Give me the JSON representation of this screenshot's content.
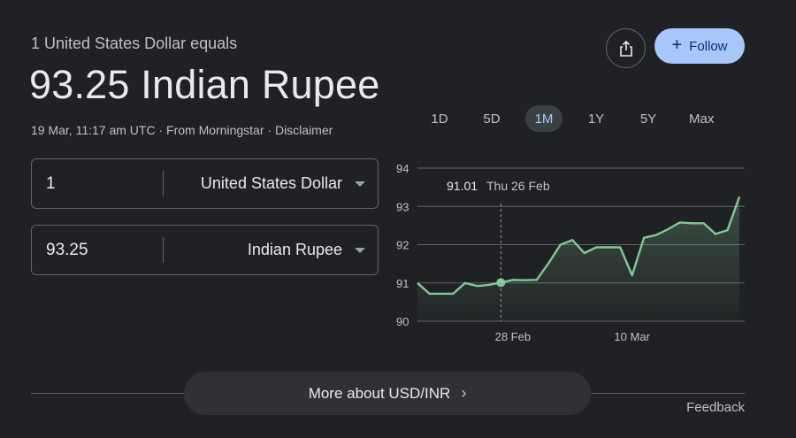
{
  "header": {
    "subtitle": "1 United States Dollar equals",
    "value": "93.25 Indian Rupee",
    "timestamp": "19 Mar, 11:17 am UTC",
    "source": "From Morningstar",
    "disclaimer": "Disclaimer",
    "separator": " · "
  },
  "actions": {
    "share_icon": "share-icon",
    "follow_label": "Follow",
    "follow_icon": "+"
  },
  "converter": {
    "from": {
      "amount": "1",
      "currency": "United States Dollar"
    },
    "to": {
      "amount": "93.25",
      "currency": "Indian Rupee"
    }
  },
  "ranges": {
    "items": [
      "1D",
      "5D",
      "1M",
      "1Y",
      "5Y",
      "Max"
    ],
    "active": "1M"
  },
  "tooltip": {
    "value": "91.01",
    "date": "Thu 26 Feb"
  },
  "colors": {
    "line": "#81c995",
    "accent": "#a8c7fa",
    "background": "#202124"
  },
  "chart_data": {
    "type": "line",
    "x_ticks": [
      "28 Feb",
      "10 Mar"
    ],
    "y_ticks": [
      90,
      91,
      92,
      93,
      94
    ],
    "ylim": [
      90,
      94
    ],
    "grid": true,
    "series": [
      {
        "values": [
          91.0,
          90.72,
          90.72,
          90.72,
          91.0,
          90.92,
          90.95,
          91.01,
          91.08,
          91.07,
          91.08,
          91.52,
          92.0,
          92.12,
          91.78,
          91.93,
          91.93,
          91.93,
          91.2,
          92.18,
          92.25,
          92.4,
          92.58,
          92.56,
          92.56,
          92.28,
          92.38,
          93.25
        ]
      }
    ],
    "highlight_index": 7
  },
  "footer": {
    "more_label": "More about USD/INR",
    "feedback": "Feedback"
  }
}
